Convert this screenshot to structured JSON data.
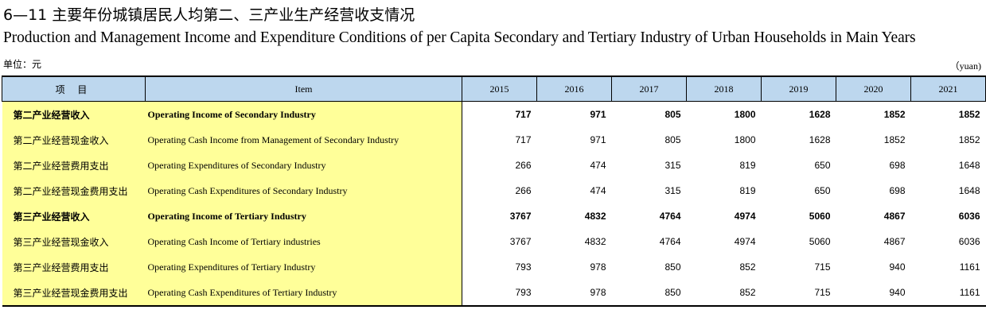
{
  "title_cn": "6—11  主要年份城镇居民人均第二、三产业生产经营收支情况",
  "title_en": "Production and Management Income and Expenditure Conditions of per Capita Secondary and Tertiary Industry of Urban Households in Main Years",
  "unit_cn": "单位：元",
  "unit_en": "（yuan)",
  "header": {
    "item_cn": "项 目",
    "item_en": "Item",
    "years": [
      "2015",
      "2016",
      "2017",
      "2018",
      "2019",
      "2020",
      "2021"
    ]
  },
  "rows": [
    {
      "cn": "第二产业经营收入",
      "en": "Operating  Income  of Secondary  Industry",
      "bold": true,
      "values": [
        "717",
        "971",
        "805",
        "1800",
        "1628",
        "1852",
        "1852"
      ]
    },
    {
      "cn": "第二产业经营现金收入",
      "en": "Operating Cash Income  from Management of Secondary  Industry",
      "bold": false,
      "values": [
        "717",
        "971",
        "805",
        "1800",
        "1628",
        "1852",
        "1852"
      ]
    },
    {
      "cn": "第二产业经营费用支出",
      "en": "Operating Expenditures of Secondary  Industry",
      "bold": false,
      "values": [
        "266",
        "474",
        "315",
        "819",
        "650",
        "698",
        "1648"
      ]
    },
    {
      "cn": "第二产业经营现金费用支出",
      "en": "Operating Cash Expenditures of Secondary  Industry",
      "bold": false,
      "values": [
        "266",
        "474",
        "315",
        "819",
        "650",
        "698",
        "1648"
      ]
    },
    {
      "cn": "第三产业经营收入",
      "en": "Operating  Income of Tertiary  Industry",
      "bold": true,
      "values": [
        "3767",
        "4832",
        "4764",
        "4974",
        "5060",
        "4867",
        "6036"
      ]
    },
    {
      "cn": "第三产业经营现金收入",
      "en": "Operating Cash Income of Tertiary industries",
      "bold": false,
      "values": [
        "3767",
        "4832",
        "4764",
        "4974",
        "5060",
        "4867",
        "6036"
      ]
    },
    {
      "cn": "第三产业经营费用支出",
      "en": "Operating Expenditures of Tertiary  Industry",
      "bold": false,
      "values": [
        "793",
        "978",
        "850",
        "852",
        "715",
        "940",
        "1161"
      ]
    },
    {
      "cn": "第三产业经营现金费用支出",
      "en": "Operating Cash Expenditures of Tertiary  Industry",
      "bold": false,
      "values": [
        "793",
        "978",
        "850",
        "852",
        "715",
        "940",
        "1161"
      ]
    }
  ]
}
